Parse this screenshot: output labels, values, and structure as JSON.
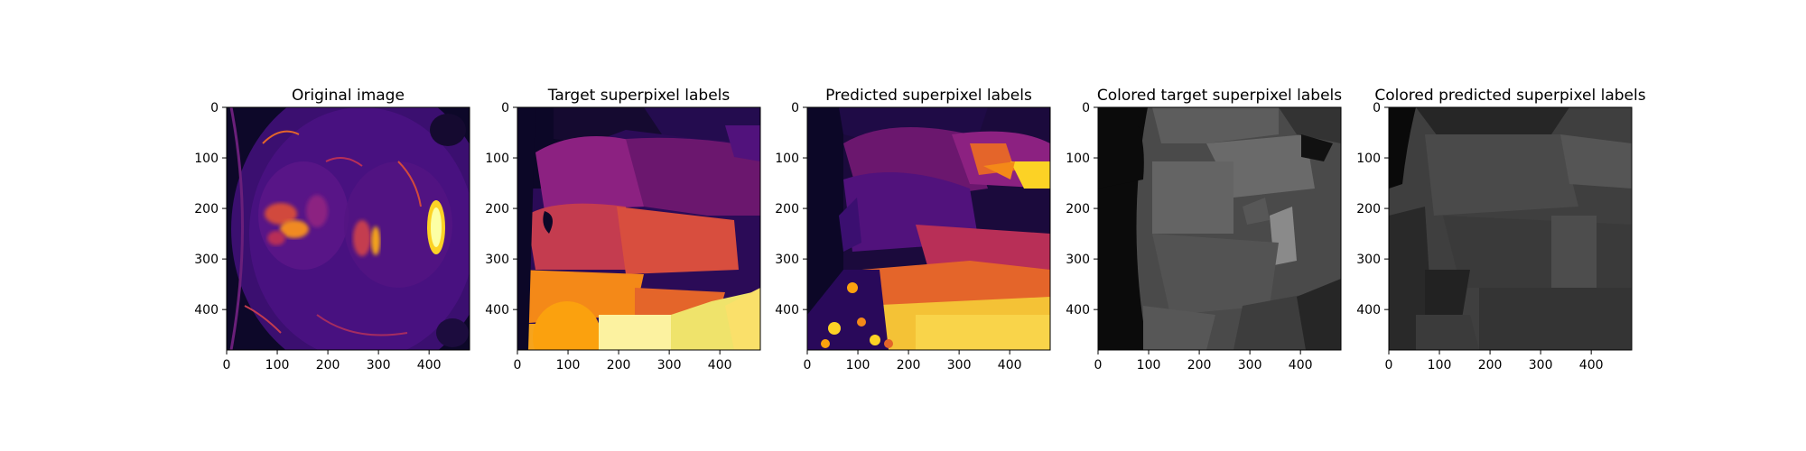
{
  "panels": [
    {
      "title": "Original image",
      "image": "mri-axial-slice",
      "palette": "inferno"
    },
    {
      "title": "Target superpixel labels",
      "image": "target-superpixel-labels",
      "palette": "inferno"
    },
    {
      "title": "Predicted superpixel labels",
      "image": "predicted-superpixel-labels",
      "palette": "inferno"
    },
    {
      "title": "Colored target superpixel labels",
      "image": "colored-target-labels",
      "palette": "gray"
    },
    {
      "title": "Colored predicted superpixel labels",
      "image": "colored-predicted-labels",
      "palette": "gray"
    }
  ],
  "x_ticks": [
    "0",
    "100",
    "200",
    "300",
    "400"
  ],
  "y_ticks": [
    "0",
    "100",
    "200",
    "300",
    "400"
  ]
}
